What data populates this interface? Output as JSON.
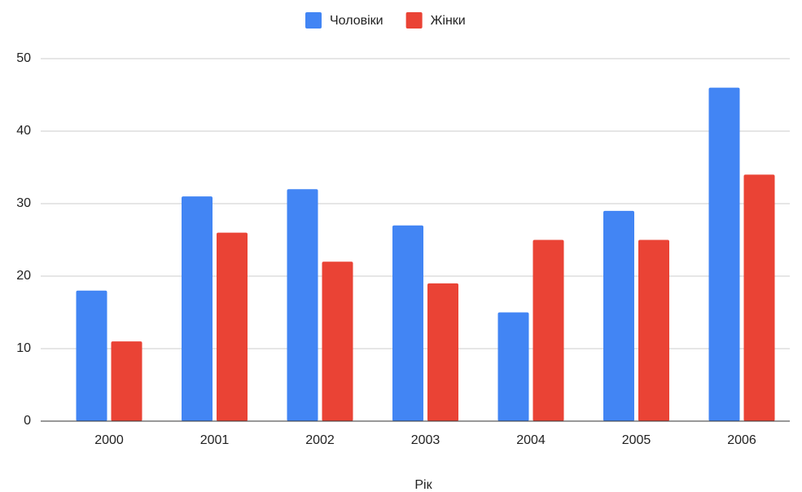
{
  "chart_data": {
    "type": "bar",
    "x_label": "Рік",
    "categories": [
      "2000",
      "2001",
      "2002",
      "2003",
      "2004",
      "2005",
      "2006"
    ],
    "series": [
      {
        "name": "Чоловіки",
        "color": "#4285f4",
        "values": [
          18,
          31,
          32,
          27,
          15,
          29,
          46
        ]
      },
      {
        "name": "Жінки",
        "color": "#ea4335",
        "values": [
          11,
          26,
          22,
          19,
          25,
          25,
          34
        ]
      }
    ],
    "ylim": [
      0,
      50
    ],
    "yticks": [
      0,
      10,
      20,
      30,
      40,
      50
    ],
    "grid": true,
    "legend": "top"
  }
}
